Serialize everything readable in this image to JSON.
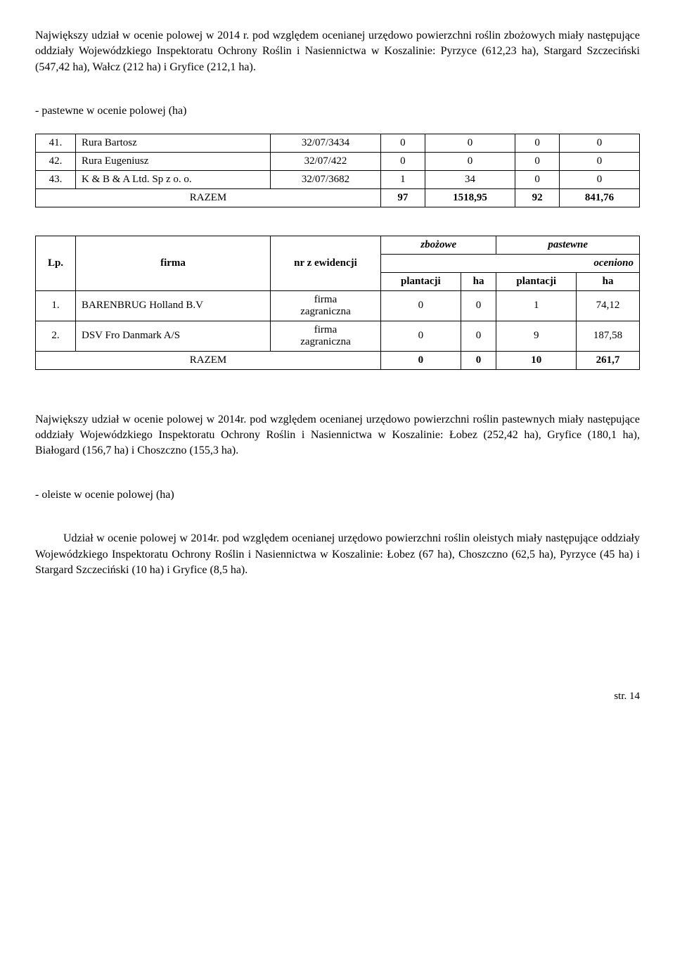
{
  "para1": "Największy udział w ocenie polowej w 2014 r. pod względem ocenianej urzędowo powierzchni roślin zbożowych miały następujące oddziały Wojewódzkiego Inspektoratu Ochrony Roślin i Nasiennictwa w Koszalinie: Pyrzyce (612,23 ha), Stargard Szczeciński (547,42 ha), Wałcz (212 ha) i Gryfice (212,1 ha).",
  "section1_title": "- pastewne w ocenie polowej (ha)",
  "table1": {
    "rows": [
      {
        "n": "41.",
        "name": "Rura Bartosz",
        "code": "32/07/3434",
        "c1": "0",
        "c2": "0",
        "c3": "0",
        "c4": "0"
      },
      {
        "n": "42.",
        "name": "Rura Eugeniusz",
        "code": "32/07/422",
        "c1": "0",
        "c2": "0",
        "c3": "0",
        "c4": "0"
      },
      {
        "n": "43.",
        "name": "K & B & A Ltd. Sp z o. o.",
        "code": "32/07/3682",
        "c1": "1",
        "c2": "34",
        "c3": "0",
        "c4": "0"
      }
    ],
    "total_label": "RAZEM",
    "total": {
      "c1": "97",
      "c2": "1518,95",
      "c3": "92",
      "c4": "841,76"
    }
  },
  "table2": {
    "head": {
      "lp": "Lp.",
      "firma": "firma",
      "nr": "nr z ewidencji",
      "zbozowe": "zbożowe",
      "pastewne": "pastewne",
      "oceniono": "oceniono",
      "plantacji": "plantacji",
      "ha": "ha"
    },
    "rows": [
      {
        "n": "1.",
        "name": "BARENBRUG Holland B.V",
        "nr": "firma\nzagraniczna",
        "c1": "0",
        "c2": "0",
        "c3": "1",
        "c4": "74,12"
      },
      {
        "n": "2.",
        "name": "DSV Fro Danmark A/S",
        "nr": "firma\nzagraniczna",
        "c1": "0",
        "c2": "0",
        "c3": "9",
        "c4": "187,58"
      }
    ],
    "total_label": "RAZEM",
    "total": {
      "c1": "0",
      "c2": "0",
      "c3": "10",
      "c4": "261,7"
    }
  },
  "para2": "Największy udział w ocenie polowej w 2014r. pod względem ocenianej urzędowo powierzchni roślin pastewnych miały następujące oddziały Wojewódzkiego Inspektoratu Ochrony Roślin i Nasiennictwa w Koszalinie: Łobez (252,42 ha), Gryfice (180,1 ha), Białogard (156,7 ha) i Choszczno (155,3 ha).",
  "section2_title": "- oleiste w ocenie polowej (ha)",
  "para3": "Udział w ocenie polowej w 2014r. pod względem ocenianej urzędowo powierzchni roślin oleistych miały następujące oddziały Wojewódzkiego Inspektoratu Ochrony Roślin i Nasiennictwa w Koszalinie: Łobez (67 ha), Choszczno (62,5 ha), Pyrzyce (45 ha) i Stargard Szczeciński (10 ha) i Gryfice (8,5 ha).",
  "footer": "str. 14"
}
